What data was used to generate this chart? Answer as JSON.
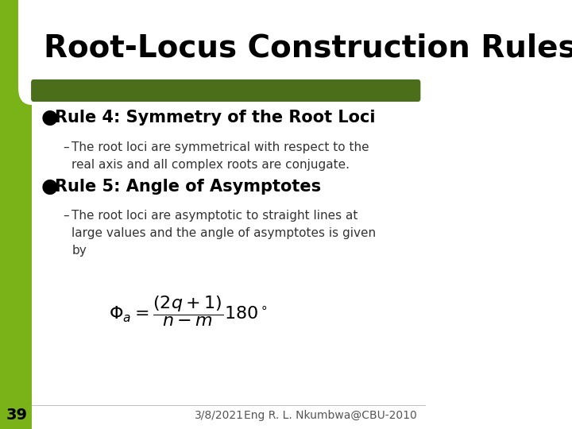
{
  "title": "Root-Locus Construction Rules",
  "title_fontsize": 28,
  "title_color": "#000000",
  "bg_color": "#ffffff",
  "green_bar_color": "#4a6e1a",
  "green_sidebar_color": "#7ab317",
  "slide_number": "39",
  "date": "3/8/2021",
  "author": "Eng R. L. Nkumbwa@CBU-2010",
  "bullet1_title": "Rule 4: Symmetry of the Root Loci",
  "bullet1_sub": "The root loci are symmetrical with respect to the\nreal axis and all complex roots are conjugate.",
  "bullet2_title": "Rule 5: Angle of Asymptotes",
  "bullet2_sub": "The root loci are asymptotic to straight lines at\nlarge values and the angle of asymptotes is given\nby",
  "bullet_color": "#000000",
  "sub_color": "#333333",
  "footer_color": "#555555",
  "slide_number_color": "#000000"
}
